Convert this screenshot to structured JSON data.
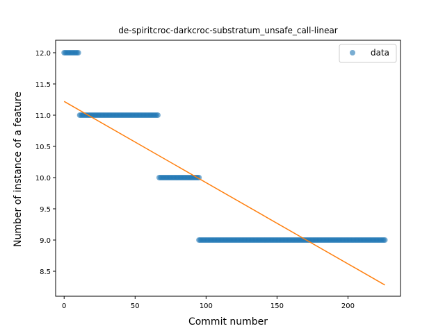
{
  "chart_data": {
    "type": "scatter",
    "title": "de-spiritcroc-darkcroc-substratum_unsafe_call-linear",
    "xlabel": "Commit number",
    "ylabel": "Number of instance of a feature",
    "xlim": [
      -6,
      237
    ],
    "ylim": [
      8.1,
      12.2
    ],
    "x_ticks": [
      0,
      50,
      100,
      150,
      200
    ],
    "y_ticks": [
      8.5,
      9.0,
      9.5,
      10.0,
      10.5,
      11.0,
      11.5,
      12.0
    ],
    "legend": {
      "position": "top-right",
      "entries": [
        "data"
      ]
    },
    "grid": false,
    "series": [
      {
        "name": "data",
        "kind": "scatter",
        "color": "#1f77b4",
        "segments": [
          {
            "y": 12.0,
            "x_start": 0,
            "x_end": 10
          },
          {
            "y": 11.0,
            "x_start": 11,
            "x_end": 66
          },
          {
            "y": 10.0,
            "x_start": 67,
            "x_end": 95
          },
          {
            "y": 9.0,
            "x_start": 95,
            "x_end": 226
          }
        ]
      },
      {
        "kind": "line",
        "color": "#ff7f0e",
        "x": [
          0,
          226
        ],
        "y": [
          11.22,
          8.28
        ]
      }
    ]
  }
}
